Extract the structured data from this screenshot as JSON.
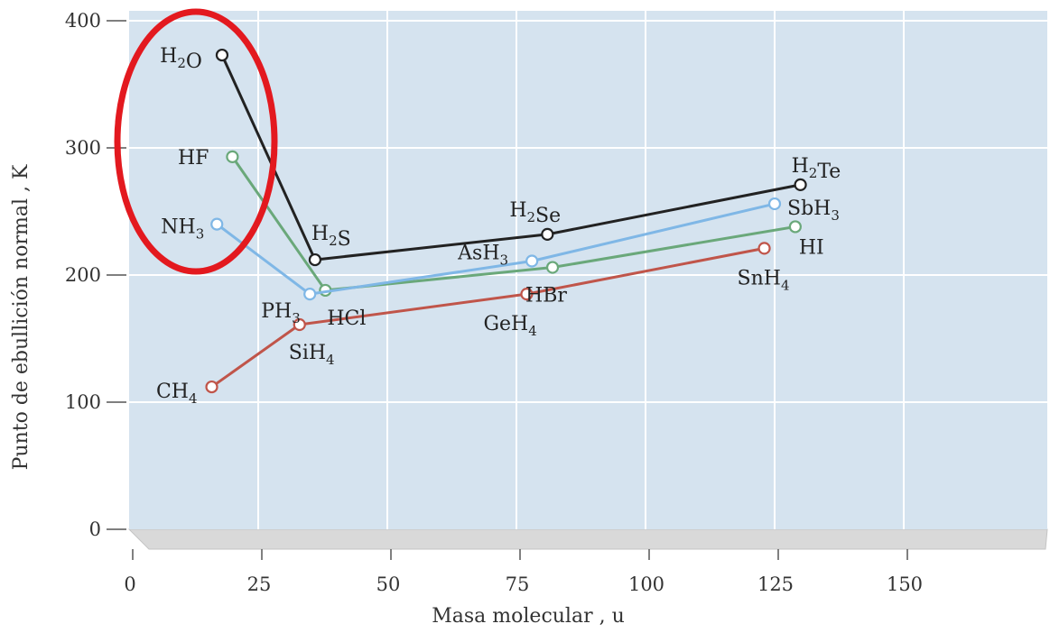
{
  "chart_data": {
    "type": "line",
    "title": "",
    "xlabel": "Masa molecular , u",
    "ylabel": "Punto de ebullición normal , K",
    "xlim": [
      0,
      175
    ],
    "ylim": [
      0,
      400
    ],
    "xticks": [
      0,
      25,
      50,
      75,
      100,
      125,
      150
    ],
    "yticks": [
      0,
      100,
      200,
      300,
      400
    ],
    "grid": true,
    "legend": "none",
    "series": [
      {
        "color": "#222222",
        "points": [
          {
            "x": 18,
            "y": 373,
            "label": "H2O"
          },
          {
            "x": 36,
            "y": 212,
            "label": "H2S"
          },
          {
            "x": 81,
            "y": 232,
            "label": "H2Se"
          },
          {
            "x": 130,
            "y": 271,
            "label": "H2Te"
          }
        ]
      },
      {
        "color": "#6aa87a",
        "points": [
          {
            "x": 20,
            "y": 293,
            "label": "HF"
          },
          {
            "x": 38,
            "y": 188,
            "label": "HCl"
          },
          {
            "x": 82,
            "y": 206,
            "label": "HBr"
          },
          {
            "x": 129,
            "y": 238,
            "label": "HI"
          }
        ]
      },
      {
        "color": "#7fb7e6",
        "points": [
          {
            "x": 17,
            "y": 240,
            "label": "NH3"
          },
          {
            "x": 35,
            "y": 185,
            "label": "PH3"
          },
          {
            "x": 78,
            "y": 211,
            "label": "AsH3"
          },
          {
            "x": 125,
            "y": 256,
            "label": "SbH3"
          }
        ]
      },
      {
        "color": "#c0554a",
        "points": [
          {
            "x": 16,
            "y": 112,
            "label": "CH4"
          },
          {
            "x": 33,
            "y": 161,
            "label": "SiH4"
          },
          {
            "x": 77,
            "y": 185,
            "label": "GeH4"
          },
          {
            "x": 123,
            "y": 221,
            "label": "SnH4"
          }
        ]
      }
    ]
  },
  "colors": {
    "plot_background": "#d5e3ef",
    "grid": "#ffffff",
    "floor": "#d9d9d9",
    "highlight_ellipse": "#e3191f"
  },
  "annotations": {
    "highlight_ellipse": "red ellipse around H2O, HF and NH3"
  }
}
